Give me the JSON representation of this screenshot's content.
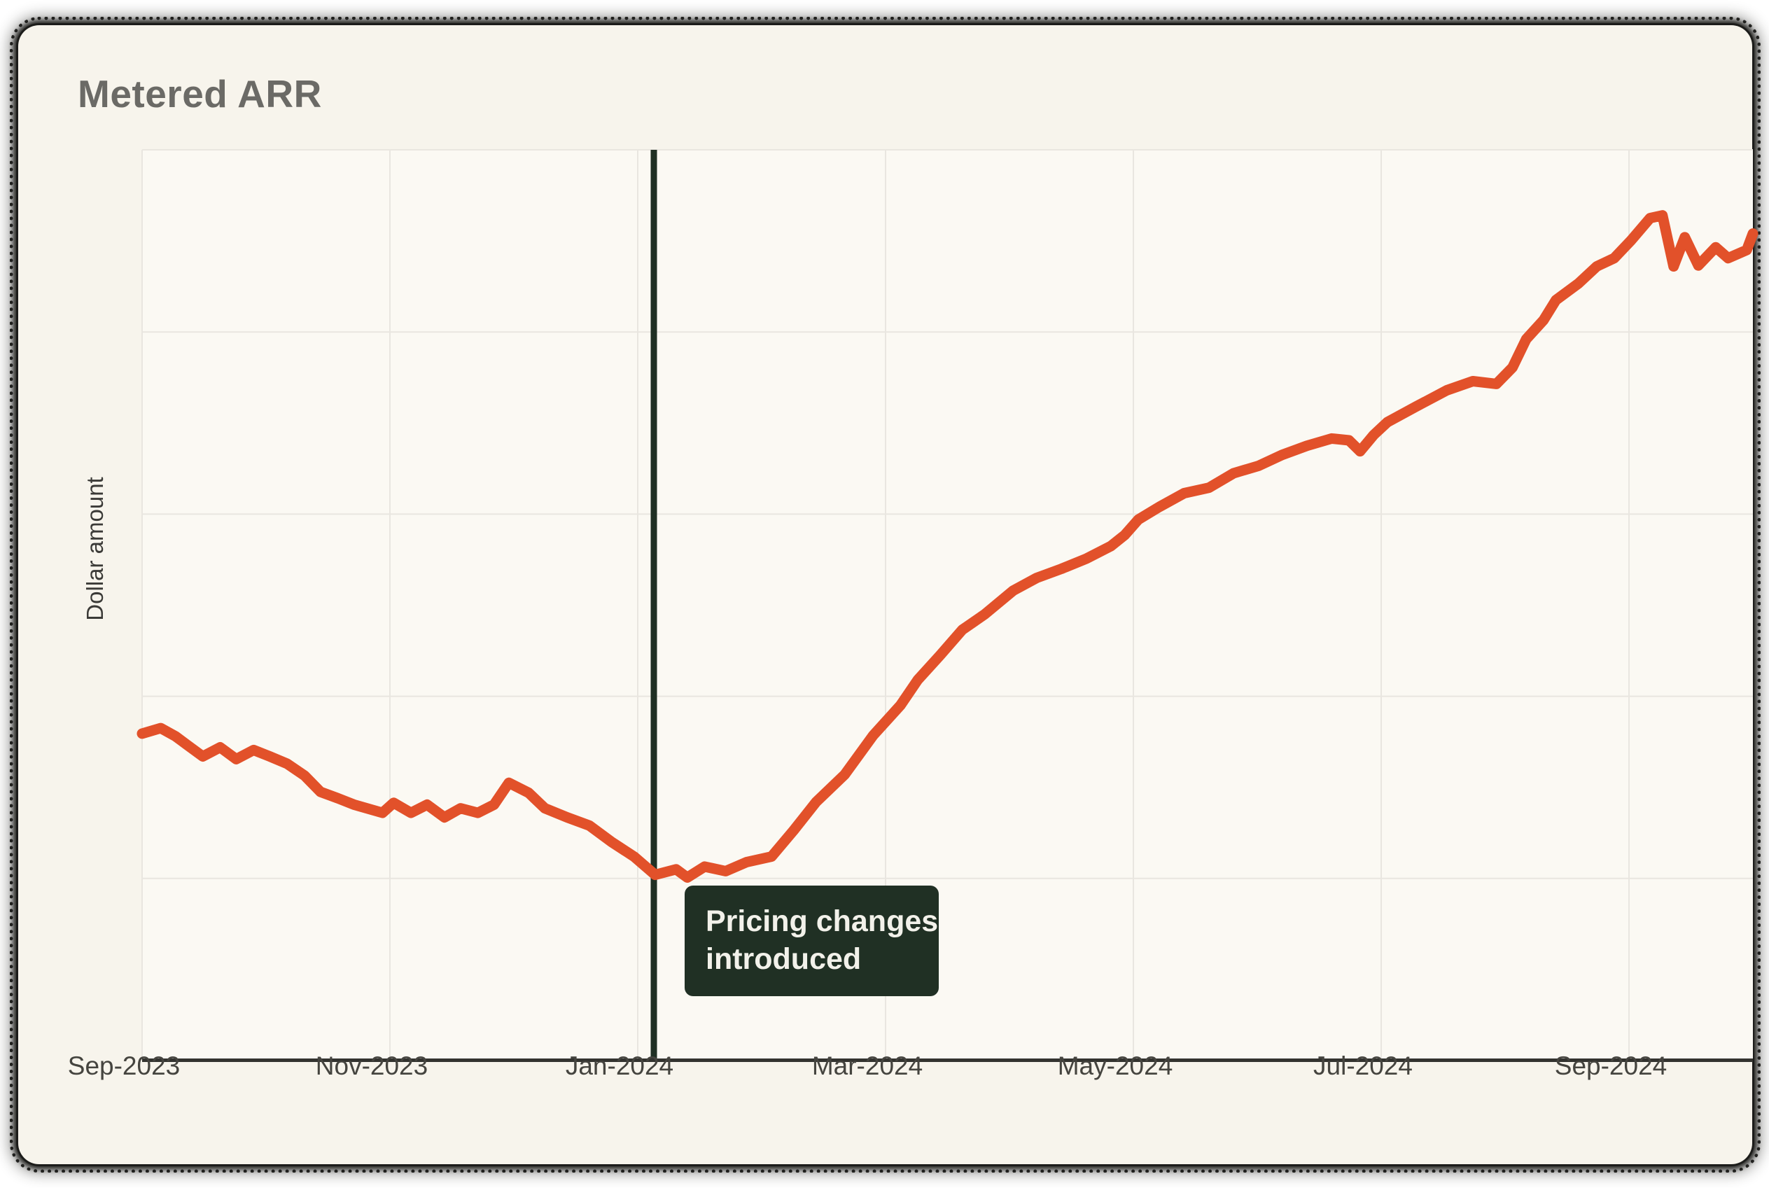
{
  "page": {
    "background": "#ffffff"
  },
  "card": {
    "background": "#F7F4EC",
    "plot_background": "#FBF9F3",
    "rough_border_color": "#1C1C1A"
  },
  "text_colors": {
    "title": "#6B6A66",
    "y_axis_label": "#3B3A37",
    "x_tick_labels": "#45443F"
  },
  "chart_data": {
    "type": "line",
    "title": "Metered ARR",
    "subtitle": "",
    "xlabel": "",
    "ylabel": "Dollar amount",
    "x_unit": "months (0 = Sep-2023)",
    "y_unit": "relative dollar amount (axis shows no numeric ticks), scaled 0-100",
    "xlim": [
      0,
      13
    ],
    "ylim": [
      0,
      100
    ],
    "grid": true,
    "grid_color": "#E9E6E0",
    "axis_color": "#33332F",
    "legend": "none",
    "x_ticks": [
      {
        "m": 0,
        "label": "Sep-2023"
      },
      {
        "m": 2,
        "label": "Nov-2023"
      },
      {
        "m": 4,
        "label": "Jan-2024"
      },
      {
        "m": 6,
        "label": "Mar-2024"
      },
      {
        "m": 8,
        "label": "May-2024"
      },
      {
        "m": 10,
        "label": "Jul-2024"
      },
      {
        "m": 12,
        "label": "Sep-2024"
      }
    ],
    "y_gridlines": [
      20,
      40,
      60,
      80,
      100
    ],
    "monthly_summary": {
      "Sep-2023": 36,
      "Oct-2023": 33,
      "Nov-2023": 28,
      "Dec-2023": 30,
      "Jan-2024": 21,
      "Feb-2024": 22,
      "Mar-2024": 37,
      "Apr-2024": 51,
      "May-2024": 58,
      "Jun-2024": 65,
      "Jul-2024": 70,
      "Aug-2024": 75,
      "Sep-2024": 90,
      "Oct-2024": 91
    },
    "series": [
      {
        "name": "Metered ARR",
        "color": "#E2512A",
        "stroke_width": 15,
        "points": [
          [
            0.0,
            35.9
          ],
          [
            0.15,
            36.5
          ],
          [
            0.27,
            35.6
          ],
          [
            0.36,
            34.7
          ],
          [
            0.49,
            33.4
          ],
          [
            0.63,
            34.4
          ],
          [
            0.76,
            33.1
          ],
          [
            0.9,
            34.1
          ],
          [
            1.03,
            33.4
          ],
          [
            1.17,
            32.6
          ],
          [
            1.31,
            31.3
          ],
          [
            1.44,
            29.5
          ],
          [
            1.58,
            28.8
          ],
          [
            1.71,
            28.1
          ],
          [
            1.94,
            27.2
          ],
          [
            2.03,
            28.3
          ],
          [
            2.17,
            27.2
          ],
          [
            2.3,
            28.1
          ],
          [
            2.44,
            26.7
          ],
          [
            2.57,
            27.7
          ],
          [
            2.71,
            27.2
          ],
          [
            2.84,
            28.1
          ],
          [
            2.96,
            30.5
          ],
          [
            3.12,
            29.4
          ],
          [
            3.25,
            27.7
          ],
          [
            3.43,
            26.7
          ],
          [
            3.61,
            25.8
          ],
          [
            3.79,
            24.0
          ],
          [
            3.97,
            22.4
          ],
          [
            4.14,
            20.4
          ],
          [
            4.31,
            21.0
          ],
          [
            4.4,
            20.1
          ],
          [
            4.54,
            21.3
          ],
          [
            4.71,
            20.8
          ],
          [
            4.88,
            21.8
          ],
          [
            5.08,
            22.4
          ],
          [
            5.26,
            25.3
          ],
          [
            5.44,
            28.4
          ],
          [
            5.67,
            31.4
          ],
          [
            5.9,
            35.7
          ],
          [
            6.12,
            39.0
          ],
          [
            6.26,
            41.8
          ],
          [
            6.44,
            44.5
          ],
          [
            6.62,
            47.3
          ],
          [
            6.8,
            49.0
          ],
          [
            7.03,
            51.6
          ],
          [
            7.22,
            53.0
          ],
          [
            7.42,
            54.0
          ],
          [
            7.62,
            55.1
          ],
          [
            7.82,
            56.5
          ],
          [
            7.93,
            57.7
          ],
          [
            8.04,
            59.4
          ],
          [
            8.21,
            60.8
          ],
          [
            8.41,
            62.3
          ],
          [
            8.61,
            62.9
          ],
          [
            8.81,
            64.5
          ],
          [
            9.01,
            65.3
          ],
          [
            9.2,
            66.5
          ],
          [
            9.4,
            67.5
          ],
          [
            9.6,
            68.3
          ],
          [
            9.74,
            68.1
          ],
          [
            9.83,
            66.9
          ],
          [
            9.94,
            68.7
          ],
          [
            10.05,
            70.1
          ],
          [
            10.28,
            71.8
          ],
          [
            10.53,
            73.6
          ],
          [
            10.74,
            74.6
          ],
          [
            10.93,
            74.3
          ],
          [
            11.06,
            76.1
          ],
          [
            11.17,
            79.2
          ],
          [
            11.31,
            81.3
          ],
          [
            11.41,
            83.5
          ],
          [
            11.59,
            85.3
          ],
          [
            11.74,
            87.2
          ],
          [
            11.88,
            88.1
          ],
          [
            12.02,
            90.1
          ],
          [
            12.17,
            92.5
          ],
          [
            12.27,
            92.8
          ],
          [
            12.36,
            87.2
          ],
          [
            12.45,
            90.4
          ],
          [
            12.56,
            87.3
          ],
          [
            12.7,
            89.3
          ],
          [
            12.8,
            88.1
          ],
          [
            12.95,
            89.0
          ],
          [
            13.0,
            90.8
          ]
        ]
      }
    ],
    "annotation": {
      "month": 4.13,
      "lines": [
        "Pricing changes",
        "introduced"
      ],
      "bg": "#203024",
      "text_color": "#F2F1EA",
      "line_color": "#203024",
      "line_width": 9
    }
  }
}
